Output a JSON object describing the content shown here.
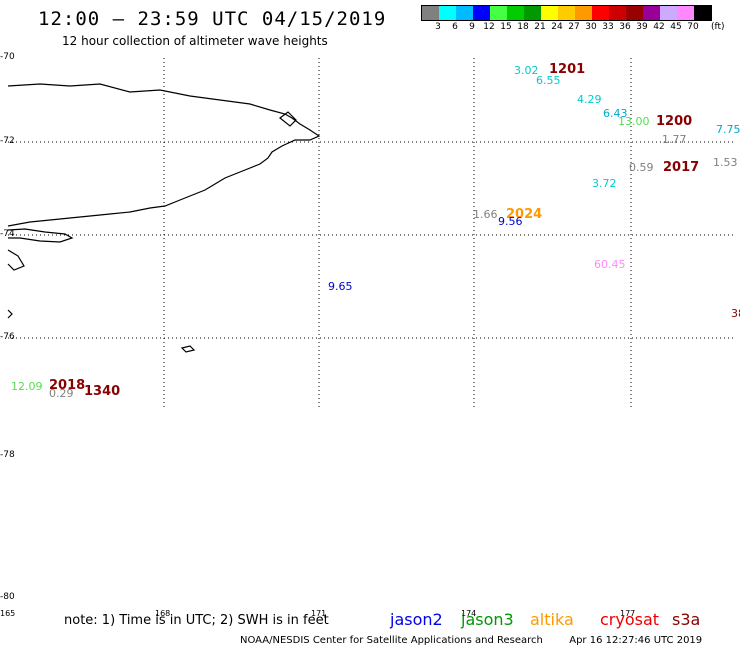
{
  "header": {
    "title": "12:00 — 23:59 UTC 04/15/2019",
    "subtitle": "12 hour collection of altimeter wave heights"
  },
  "legend": {
    "colors": [
      "#808080",
      "#00ffff",
      "#00bbff",
      "#0000ff",
      "#44ff44",
      "#00cc00",
      "#009900",
      "#ffff00",
      "#ffcc00",
      "#ff9900",
      "#ff0000",
      "#cc0000",
      "#990000",
      "#990099",
      "#ccaaff",
      "#ff88ff",
      "#000000"
    ],
    "labels": [
      "3",
      "6",
      "9",
      "12",
      "15",
      "18",
      "21",
      "24",
      "27",
      "30",
      "33",
      "36",
      "39",
      "42",
      "45",
      "70"
    ],
    "unit": "(ft)"
  },
  "axes": {
    "lat_labels": [
      "-70",
      "-72",
      "-74",
      "-76",
      "-78",
      "-80"
    ],
    "lon_labels": [
      "165",
      "168",
      "171",
      "174",
      "177"
    ]
  },
  "observations": [
    {
      "text": "3.02",
      "color": "#00cccc"
    },
    {
      "text": "1201",
      "color": "#880000"
    },
    {
      "text": "6.55",
      "color": "#00cccc"
    },
    {
      "text": "4.29",
      "color": "#00cccc"
    },
    {
      "text": "6.43",
      "color": "#00aacc"
    },
    {
      "text": "13.00",
      "color": "#55dd55"
    },
    {
      "text": "1200",
      "color": "#880000"
    },
    {
      "text": "7.75",
      "color": "#00aacc"
    },
    {
      "text": "1.77",
      "color": "#808080"
    },
    {
      "text": "0.59",
      "color": "#808080"
    },
    {
      "text": "2017",
      "color": "#880000"
    },
    {
      "text": "1.53",
      "color": "#808080"
    },
    {
      "text": "3.72",
      "color": "#00cccc"
    },
    {
      "text": "1.66",
      "color": "#808080"
    },
    {
      "text": "2024",
      "color": "#ff9900"
    },
    {
      "text": "9.56",
      "color": "#0000cc"
    },
    {
      "text": "60.45",
      "color": "#ff88ff"
    },
    {
      "text": "9.65",
      "color": "#0000cc"
    },
    {
      "text": "38",
      "color": "#880000"
    },
    {
      "text": "12.09",
      "color": "#55dd55"
    },
    {
      "text": "2018",
      "color": "#880000"
    },
    {
      "text": "0.29",
      "color": "#808080"
    },
    {
      "text": "1340",
      "color": "#880000"
    }
  ],
  "footer": {
    "note": "note: 1) Time is in UTC; 2) SWH is in feet",
    "satellites": [
      {
        "name": "jason2",
        "color": "#0000ee"
      },
      {
        "name": "jason3",
        "color": "#009900"
      },
      {
        "name": "altika",
        "color": "#ff9900"
      },
      {
        "name": "cryosat",
        "color": "#ee0000"
      },
      {
        "name": "s3a",
        "color": "#880000"
      }
    ],
    "credit": "NOAA/NESDIS Center for Satellite Applications and Research",
    "timestamp": "Apr 16 12:27:46 UTC 2019"
  }
}
